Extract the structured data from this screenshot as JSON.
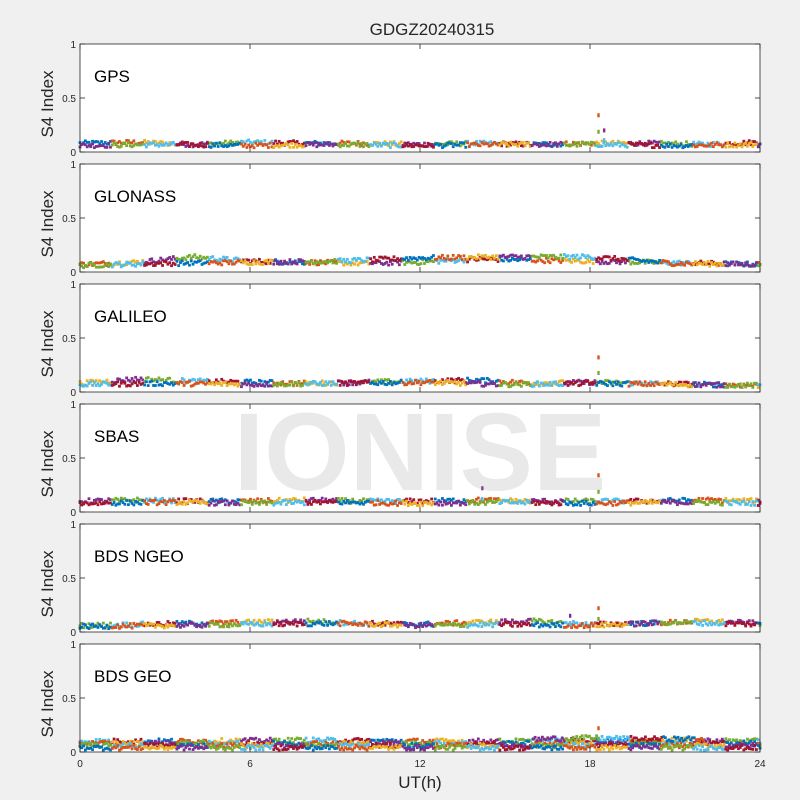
{
  "figure": {
    "title": "GDGZ20240315",
    "xlabel": "UT(h)",
    "watermark": "IONISE"
  },
  "chart_data": [
    {
      "type": "scatter",
      "title": "GPS",
      "ylabel": "S4 Index",
      "xlim": [
        0,
        24
      ],
      "ylim": [
        0,
        1
      ],
      "x_ticks": [
        0,
        6,
        12,
        18,
        24
      ],
      "y_ticks": [
        0,
        0.5,
        1
      ],
      "grid": false,
      "series_colors": [
        "#0072BD",
        "#D95319",
        "#EDB120",
        "#7E2F8E",
        "#77AC30",
        "#4DBEEE",
        "#A2142F"
      ],
      "series": [
        {
          "x": [
            0,
            2,
            4,
            6,
            8,
            10,
            12,
            14,
            16,
            18,
            20,
            22,
            24
          ],
          "values": [
            0.08,
            0.09,
            0.07,
            0.09,
            0.08,
            0.08,
            0.07,
            0.08,
            0.07,
            0.08,
            0.08,
            0.07,
            0.09
          ]
        },
        {
          "x": [
            0,
            3,
            6,
            9,
            12,
            15,
            18,
            21,
            24
          ],
          "values": [
            0.06,
            0.07,
            0.06,
            0.07,
            0.06,
            0.07,
            0.07,
            0.06,
            0.07
          ]
        }
      ],
      "spikes": [
        {
          "x": 18.3,
          "y": 0.34
        },
        {
          "x": 18.5,
          "y": 0.2
        }
      ]
    },
    {
      "type": "scatter",
      "title": "GLONASS",
      "ylabel": "S4 Index",
      "xlim": [
        0,
        24
      ],
      "ylim": [
        0,
        1
      ],
      "x_ticks": [
        0,
        6,
        12,
        18,
        24
      ],
      "y_ticks": [
        0,
        0.5,
        1
      ],
      "grid": false,
      "series_colors": [
        "#0072BD",
        "#D95319",
        "#EDB120",
        "#7E2F8E",
        "#77AC30",
        "#4DBEEE",
        "#A2142F"
      ],
      "series": [
        {
          "x": [
            0,
            2,
            4,
            6,
            8,
            10,
            12,
            14,
            16,
            18,
            20,
            22,
            24
          ],
          "values": [
            0.07,
            0.09,
            0.14,
            0.1,
            0.09,
            0.08,
            0.09,
            0.12,
            0.11,
            0.1,
            0.09,
            0.08,
            0.07
          ]
        },
        {
          "x": [
            0,
            3,
            6,
            9,
            12,
            15,
            18,
            21,
            24
          ],
          "values": [
            0.06,
            0.08,
            0.09,
            0.1,
            0.13,
            0.14,
            0.14,
            0.08,
            0.07
          ]
        }
      ],
      "spikes": []
    },
    {
      "type": "scatter",
      "title": "GALILEO",
      "ylabel": "S4 Index",
      "xlim": [
        0,
        24
      ],
      "ylim": [
        0,
        1
      ],
      "x_ticks": [
        0,
        6,
        12,
        18,
        24
      ],
      "y_ticks": [
        0,
        0.5,
        1
      ],
      "grid": false,
      "series_colors": [
        "#0072BD",
        "#D95319",
        "#EDB120",
        "#7E2F8E",
        "#77AC30",
        "#4DBEEE",
        "#A2142F"
      ],
      "series": [
        {
          "x": [
            0,
            2,
            4,
            6,
            8,
            10,
            12,
            14,
            16,
            18,
            20,
            22,
            24
          ],
          "values": [
            0.08,
            0.12,
            0.1,
            0.09,
            0.08,
            0.09,
            0.1,
            0.11,
            0.08,
            0.09,
            0.08,
            0.07,
            0.06
          ]
        },
        {
          "x": [
            0,
            3,
            6,
            9,
            12,
            15,
            18,
            21,
            24
          ],
          "values": [
            0.07,
            0.08,
            0.07,
            0.08,
            0.09,
            0.07,
            0.08,
            0.07,
            0.06
          ]
        }
      ],
      "spikes": [
        {
          "x": 18.3,
          "y": 0.32
        }
      ]
    },
    {
      "type": "scatter",
      "title": "SBAS",
      "ylabel": "S4 Index",
      "xlim": [
        0,
        24
      ],
      "ylim": [
        0,
        1
      ],
      "x_ticks": [
        0,
        6,
        12,
        18,
        24
      ],
      "y_ticks": [
        0,
        0.5,
        1
      ],
      "grid": false,
      "series_colors": [
        "#0072BD",
        "#D95319",
        "#EDB120",
        "#7E2F8E",
        "#77AC30",
        "#4DBEEE",
        "#A2142F"
      ],
      "series": [
        {
          "x": [
            0,
            2,
            4,
            6,
            8,
            10,
            12,
            14,
            16,
            18,
            20,
            22,
            24
          ],
          "values": [
            0.1,
            0.11,
            0.1,
            0.1,
            0.11,
            0.1,
            0.1,
            0.11,
            0.1,
            0.1,
            0.1,
            0.11,
            0.1
          ]
        },
        {
          "x": [
            0,
            3,
            6,
            9,
            12,
            15,
            18,
            21,
            24
          ],
          "values": [
            0.08,
            0.09,
            0.08,
            0.09,
            0.08,
            0.09,
            0.08,
            0.09,
            0.08
          ]
        }
      ],
      "spikes": [
        {
          "x": 18.3,
          "y": 0.34
        },
        {
          "x": 14.2,
          "y": 0.22
        }
      ]
    },
    {
      "type": "scatter",
      "title": "BDS NGEO",
      "ylabel": "S4 Index",
      "xlim": [
        0,
        24
      ],
      "ylim": [
        0,
        1
      ],
      "x_ticks": [
        0,
        6,
        12,
        18,
        24
      ],
      "y_ticks": [
        0,
        0.5,
        1
      ],
      "grid": false,
      "series_colors": [
        "#0072BD",
        "#D95319",
        "#EDB120",
        "#7E2F8E",
        "#77AC30",
        "#4DBEEE",
        "#A2142F"
      ],
      "series": [
        {
          "x": [
            0,
            2,
            4,
            6,
            8,
            10,
            12,
            14,
            16,
            18,
            20,
            22,
            24
          ],
          "values": [
            0.06,
            0.07,
            0.08,
            0.09,
            0.1,
            0.08,
            0.07,
            0.09,
            0.1,
            0.07,
            0.08,
            0.1,
            0.08
          ]
        },
        {
          "x": [
            0,
            3,
            6,
            9,
            12,
            15,
            18,
            21,
            24
          ],
          "values": [
            0.05,
            0.06,
            0.07,
            0.08,
            0.06,
            0.07,
            0.06,
            0.09,
            0.07
          ]
        }
      ],
      "spikes": [
        {
          "x": 18.3,
          "y": 0.22
        },
        {
          "x": 17.3,
          "y": 0.15
        }
      ]
    },
    {
      "type": "scatter",
      "title": "BDS GEO",
      "ylabel": "S4 Index",
      "xlim": [
        0,
        24
      ],
      "ylim": [
        0,
        1
      ],
      "x_ticks": [
        0,
        6,
        12,
        18,
        24
      ],
      "y_ticks": [
        0,
        0.5,
        1
      ],
      "grid": false,
      "series_colors": [
        "#0072BD",
        "#D95319",
        "#EDB120",
        "#7E2F8E",
        "#77AC30",
        "#4DBEEE",
        "#A2142F"
      ],
      "series": [
        {
          "x": [
            0,
            4,
            8,
            12,
            16,
            20,
            24
          ],
          "values": [
            0.1,
            0.1,
            0.11,
            0.1,
            0.1,
            0.11,
            0.1
          ]
        },
        {
          "x": [
            0,
            4,
            8,
            12,
            16,
            20,
            24
          ],
          "values": [
            0.08,
            0.08,
            0.08,
            0.08,
            0.08,
            0.08,
            0.08
          ]
        },
        {
          "x": [
            0,
            4,
            8,
            12,
            16,
            20,
            24
          ],
          "values": [
            0.06,
            0.06,
            0.06,
            0.06,
            0.06,
            0.06,
            0.06
          ]
        },
        {
          "x": [
            0,
            4,
            8,
            12,
            16,
            20,
            24
          ],
          "values": [
            0.04,
            0.04,
            0.04,
            0.04,
            0.04,
            0.04,
            0.04
          ]
        },
        {
          "x": [
            16,
            18,
            20,
            22
          ],
          "values": [
            0.12,
            0.13,
            0.12,
            0.12
          ]
        }
      ],
      "spikes": [
        {
          "x": 18.3,
          "y": 0.22
        }
      ]
    }
  ]
}
